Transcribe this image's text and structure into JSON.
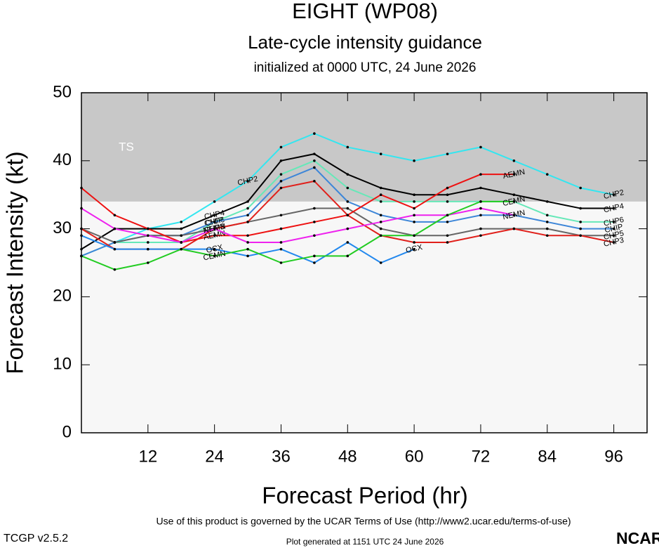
{
  "chart_data": {
    "type": "line",
    "title": "EIGHT (WP08)",
    "subtitle": "Late-cycle intensity guidance",
    "initialized": "initialized at 0000 UTC, 24 June 2026",
    "xlabel": "Forecast Period (hr)",
    "ylabel": "Forecast Intensity (kt)",
    "x": [
      0,
      6,
      12,
      18,
      24,
      30,
      36,
      42,
      48,
      54,
      60,
      66,
      72,
      78,
      84,
      90,
      96
    ],
    "xlim": [
      0,
      102
    ],
    "xticks": [
      12,
      24,
      36,
      48,
      60,
      72,
      84,
      96
    ],
    "ylim": [
      0,
      50
    ],
    "yticks": [
      0,
      10,
      20,
      30,
      40,
      50
    ],
    "regions": [
      {
        "label": "TS",
        "ymin": 34,
        "ymax": 50,
        "color": "#c8c8c8"
      }
    ],
    "series": [
      {
        "name": "CHP2",
        "color": "#33e6f0",
        "values": [
          null,
          28,
          30,
          31,
          34,
          37,
          42,
          44,
          42,
          41,
          40,
          41,
          42,
          40,
          38,
          36,
          35
        ]
      },
      {
        "name": "CHP4",
        "color": "#000000",
        "values": [
          27,
          30,
          30,
          30,
          32,
          34,
          40,
          41,
          38,
          36,
          35,
          35,
          36,
          35,
          34,
          33,
          33
        ]
      },
      {
        "name": "CHP6",
        "color": "#66e8b8",
        "values": [
          26,
          28,
          28,
          28,
          31,
          33,
          38,
          40,
          36,
          34,
          34,
          34,
          34,
          34,
          32,
          31,
          31
        ]
      },
      {
        "name": "CHIP",
        "color": "#3d86d8",
        "values": [
          26,
          28,
          29,
          29,
          31,
          32,
          37,
          39,
          34,
          32,
          31,
          31,
          32,
          32,
          31,
          30,
          30
        ]
      },
      {
        "name": "CHP5",
        "color": "#666666",
        "values": [
          30,
          28,
          29,
          29,
          30,
          31,
          32,
          33,
          33,
          30,
          29,
          29,
          30,
          30,
          30,
          29,
          29
        ]
      },
      {
        "name": "CHP3",
        "color": "#e0201b",
        "values": [
          30,
          27,
          27,
          27,
          30,
          31,
          36,
          37,
          32,
          29,
          28,
          28,
          29,
          30,
          29,
          29,
          28
        ]
      },
      {
        "name": "AEMN",
        "color": "#ee1111",
        "values": [
          36,
          32,
          30,
          28,
          29,
          29,
          30,
          31,
          32,
          35,
          33,
          36,
          38,
          38,
          null,
          null,
          null
        ]
      },
      {
        "name": "NEMN",
        "color": "#ee22ee",
        "values": [
          33,
          30,
          29,
          28,
          30,
          28,
          28,
          29,
          30,
          31,
          32,
          32,
          33,
          32,
          null,
          null,
          null
        ]
      },
      {
        "name": "OCX",
        "color": "#2288ee",
        "values": [
          29,
          27,
          27,
          27,
          27,
          26,
          27,
          25,
          28,
          25,
          27,
          null,
          null,
          null,
          null,
          null,
          null
        ]
      },
      {
        "name": "CEMN",
        "color": "#22cc22",
        "values": [
          26,
          24,
          25,
          27,
          26,
          27,
          25,
          26,
          26,
          29,
          29,
          32,
          34,
          34,
          null,
          null,
          null
        ]
      }
    ],
    "footer": "Use of this product is governed by the UCAR Terms of Use (http://www2.ucar.edu/terms-of-use)",
    "version": "TCGP v2.5.2",
    "generated": "Plot generated at 1151 UTC   24 June 2026",
    "logo": "NCAR"
  }
}
